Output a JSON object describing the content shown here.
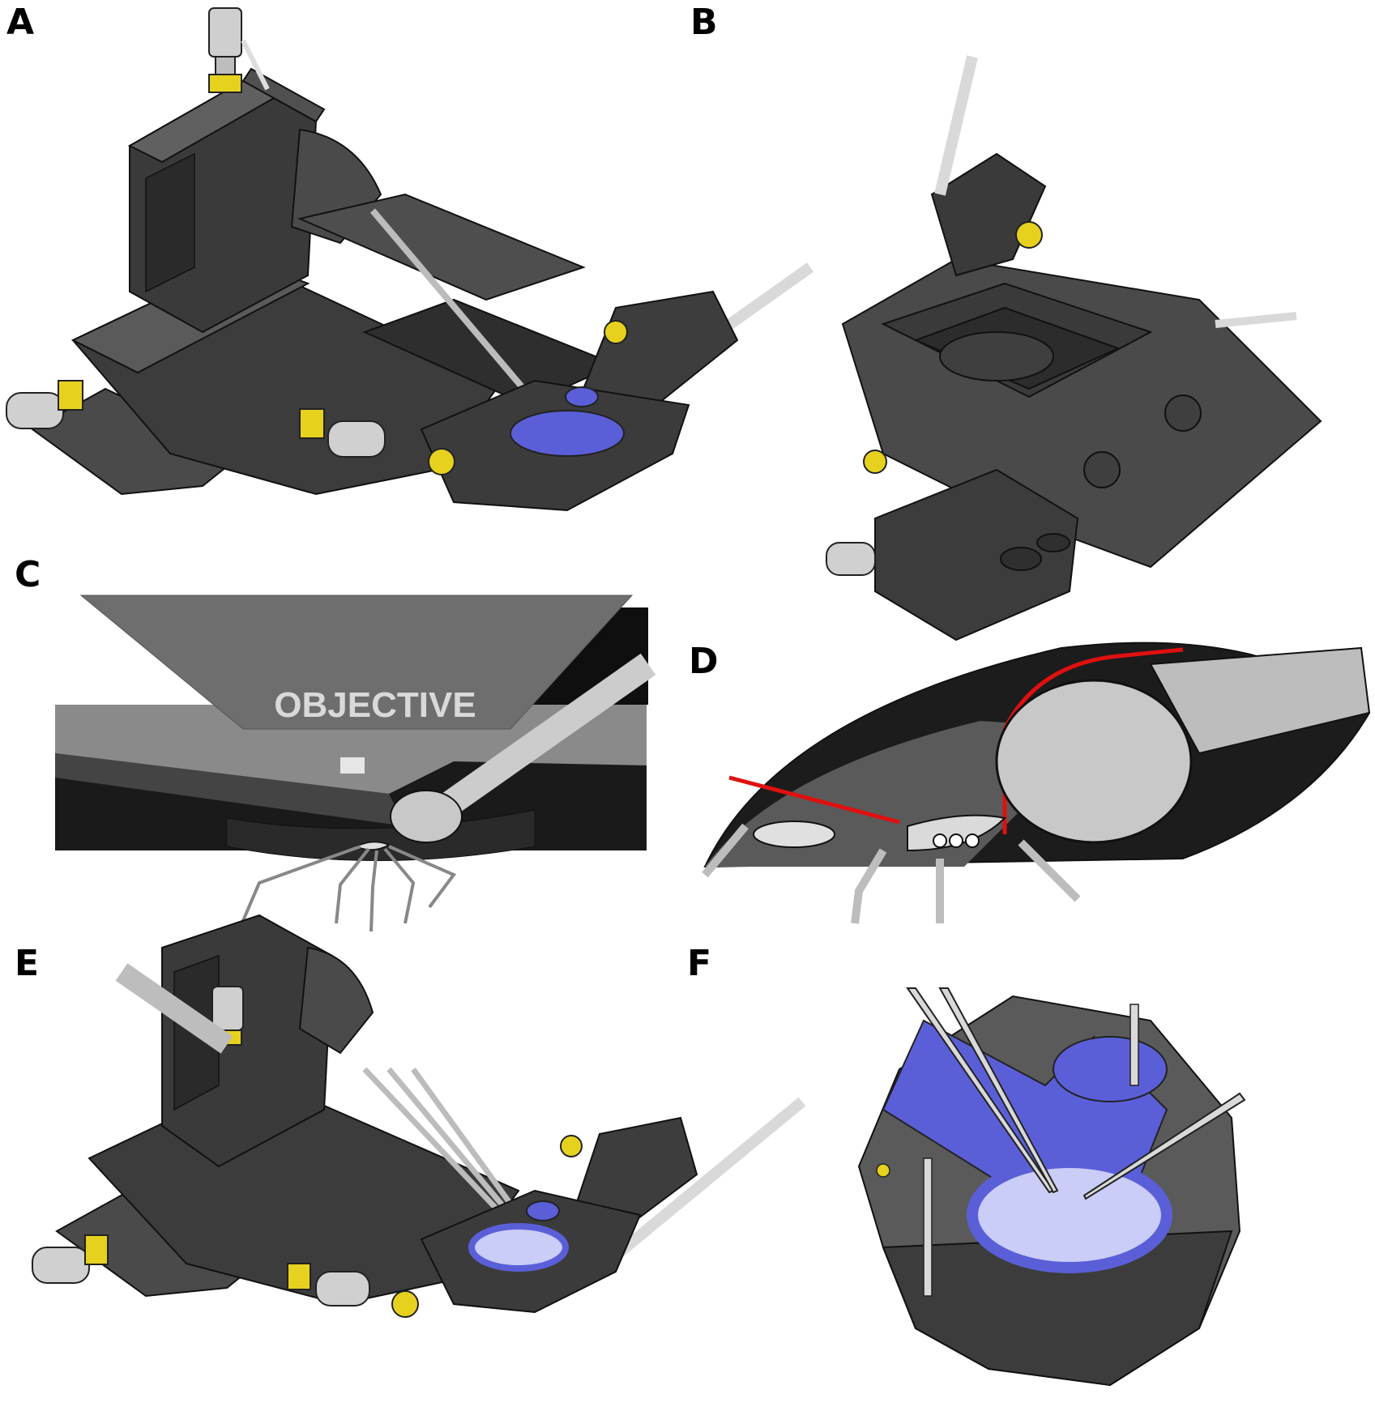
{
  "figure": {
    "panels": [
      {
        "id": "A",
        "label": "A"
      },
      {
        "id": "B",
        "label": "B"
      },
      {
        "id": "C",
        "label": "C",
        "annotation": "OBJECTIVE"
      },
      {
        "id": "D",
        "label": "D"
      },
      {
        "id": "E",
        "label": "E"
      },
      {
        "id": "F",
        "label": "F"
      }
    ]
  },
  "colors": {
    "body_dark": "#3a3a3a",
    "body_mid": "#555555",
    "body_light": "#777777",
    "metal": "#c8c8c8",
    "brass": "#e6d21e",
    "saline_blue": "#5a5fd8",
    "saline_light": "#c9cdf7",
    "highlight_red": "#e01010",
    "objective_grey": "#6e6e6e"
  }
}
